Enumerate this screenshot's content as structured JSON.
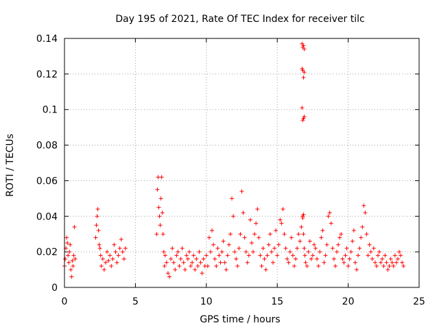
{
  "chart_data": {
    "type": "scatter",
    "title": "Day 195 of 2021, Rate Of TEC Index for receiver tilc",
    "xlabel": "GPS time / hours",
    "ylabel": "ROTI / TECUs",
    "xlim": [
      0,
      25
    ],
    "ylim": [
      0,
      0.14
    ],
    "x_ticks": [
      0,
      5,
      10,
      15,
      20,
      25
    ],
    "x_tick_labels": [
      "0",
      "5",
      "10",
      "15",
      "20",
      "25"
    ],
    "y_ticks": [
      0,
      0.02,
      0.04,
      0.06,
      0.08,
      0.1,
      0.12,
      0.14
    ],
    "y_tick_labels": [
      "0",
      "0.02",
      "0.04",
      "0.06",
      "0.08",
      "0.1",
      "0.12",
      "0.14"
    ],
    "grid": true,
    "marker": "+",
    "color": "#ff0000",
    "series": [
      {
        "name": "ROTI",
        "x": [
          0.0,
          0.05,
          0.1,
          0.15,
          0.2,
          0.25,
          0.3,
          0.35,
          0.4,
          0.45,
          0.5,
          0.55,
          0.6,
          0.65,
          0.7,
          0.75,
          2.2,
          2.25,
          2.3,
          2.35,
          2.4,
          2.45,
          2.5,
          2.55,
          2.6,
          2.7,
          2.8,
          2.9,
          3.0,
          3.1,
          3.2,
          3.3,
          3.4,
          3.5,
          3.6,
          3.7,
          3.8,
          3.9,
          4.0,
          4.1,
          4.2,
          4.3,
          6.5,
          6.55,
          6.6,
          6.65,
          6.7,
          6.75,
          6.8,
          6.85,
          6.9,
          6.95,
          7.0,
          7.05,
          7.1,
          7.2,
          7.3,
          7.4,
          7.5,
          7.6,
          7.7,
          7.8,
          7.9,
          8.0,
          8.1,
          8.2,
          8.3,
          8.4,
          8.5,
          8.6,
          8.7,
          8.8,
          8.9,
          9.0,
          9.1,
          9.2,
          9.3,
          9.4,
          9.5,
          9.6,
          9.7,
          9.8,
          9.9,
          10.0,
          10.1,
          10.2,
          10.3,
          10.4,
          10.5,
          10.6,
          10.7,
          10.8,
          10.9,
          11.0,
          11.1,
          11.2,
          11.3,
          11.4,
          11.5,
          11.6,
          11.7,
          11.8,
          11.9,
          12.0,
          12.1,
          12.2,
          12.3,
          12.4,
          12.5,
          12.6,
          12.7,
          12.8,
          12.9,
          13.0,
          13.1,
          13.2,
          13.3,
          13.4,
          13.5,
          13.6,
          13.7,
          13.8,
          13.9,
          14.0,
          14.1,
          14.2,
          14.3,
          14.4,
          14.5,
          14.6,
          14.7,
          14.8,
          14.9,
          15.0,
          15.1,
          15.2,
          15.3,
          15.4,
          15.5,
          15.6,
          15.7,
          15.8,
          15.9,
          16.0,
          16.1,
          16.2,
          16.3,
          16.4,
          16.5,
          16.6,
          16.7,
          16.8,
          16.85,
          16.9,
          16.95,
          17.0,
          17.1,
          17.2,
          17.3,
          17.4,
          17.5,
          17.6,
          17.7,
          17.8,
          17.9,
          18.0,
          18.1,
          18.2,
          18.3,
          18.4,
          18.5,
          18.6,
          18.7,
          18.8,
          18.9,
          19.0,
          19.1,
          19.2,
          19.3,
          19.4,
          19.5,
          19.6,
          19.7,
          19.8,
          19.9,
          20.0,
          20.1,
          20.2,
          20.3,
          20.4,
          20.5,
          20.6,
          20.7,
          20.8,
          20.9,
          21.0,
          21.1,
          21.2,
          21.3,
          21.4,
          21.5,
          21.6,
          21.7,
          21.8,
          21.9,
          22.0,
          22.1,
          22.2,
          22.3,
          22.4,
          22.5,
          22.6,
          22.7,
          22.8,
          22.9,
          23.0,
          23.1,
          23.2,
          23.3,
          23.4,
          23.5,
          23.6,
          23.7,
          23.8,
          23.9,
          16.75,
          16.8,
          16.85,
          16.9,
          16.75,
          16.8,
          16.85,
          16.9,
          16.75,
          16.8,
          16.85,
          16.9,
          16.8,
          16.85,
          16.8
        ],
        "y": [
          0.012,
          0.016,
          0.022,
          0.028,
          0.025,
          0.018,
          0.014,
          0.02,
          0.024,
          0.01,
          0.006,
          0.015,
          0.012,
          0.018,
          0.034,
          0.016,
          0.028,
          0.035,
          0.04,
          0.044,
          0.032,
          0.024,
          0.022,
          0.018,
          0.012,
          0.016,
          0.01,
          0.014,
          0.02,
          0.015,
          0.018,
          0.012,
          0.016,
          0.024,
          0.02,
          0.014,
          0.018,
          0.022,
          0.027,
          0.02,
          0.016,
          0.022,
          0.03,
          0.055,
          0.062,
          0.045,
          0.04,
          0.035,
          0.05,
          0.062,
          0.042,
          0.03,
          0.02,
          0.012,
          0.018,
          0.014,
          0.008,
          0.006,
          0.016,
          0.022,
          0.014,
          0.01,
          0.018,
          0.02,
          0.012,
          0.016,
          0.022,
          0.014,
          0.01,
          0.018,
          0.016,
          0.02,
          0.012,
          0.014,
          0.018,
          0.01,
          0.016,
          0.012,
          0.02,
          0.014,
          0.008,
          0.016,
          0.012,
          0.018,
          0.012,
          0.028,
          0.02,
          0.032,
          0.024,
          0.016,
          0.012,
          0.022,
          0.018,
          0.014,
          0.02,
          0.026,
          0.014,
          0.01,
          0.018,
          0.024,
          0.03,
          0.05,
          0.04,
          0.02,
          0.016,
          0.012,
          0.022,
          0.03,
          0.054,
          0.042,
          0.028,
          0.02,
          0.014,
          0.018,
          0.038,
          0.025,
          0.02,
          0.03,
          0.036,
          0.044,
          0.028,
          0.018,
          0.012,
          0.022,
          0.016,
          0.01,
          0.018,
          0.024,
          0.03,
          0.02,
          0.014,
          0.022,
          0.032,
          0.018,
          0.024,
          0.038,
          0.036,
          0.044,
          0.03,
          0.022,
          0.016,
          0.014,
          0.02,
          0.028,
          0.018,
          0.012,
          0.016,
          0.022,
          0.03,
          0.026,
          0.034,
          0.04,
          0.03,
          0.022,
          0.018,
          0.014,
          0.012,
          0.02,
          0.026,
          0.016,
          0.018,
          0.024,
          0.022,
          0.016,
          0.012,
          0.02,
          0.028,
          0.032,
          0.014,
          0.018,
          0.024,
          0.04,
          0.042,
          0.036,
          0.022,
          0.016,
          0.012,
          0.02,
          0.024,
          0.028,
          0.03,
          0.016,
          0.014,
          0.018,
          0.022,
          0.012,
          0.016,
          0.02,
          0.026,
          0.032,
          0.014,
          0.01,
          0.018,
          0.022,
          0.028,
          0.034,
          0.046,
          0.042,
          0.03,
          0.018,
          0.024,
          0.02,
          0.016,
          0.022,
          0.014,
          0.012,
          0.018,
          0.02,
          0.014,
          0.016,
          0.012,
          0.018,
          0.014,
          0.01,
          0.012,
          0.016,
          0.014,
          0.012,
          0.018,
          0.014,
          0.016,
          0.02,
          0.018,
          0.014,
          0.012,
          0.137,
          0.135,
          0.136,
          0.134,
          0.123,
          0.122,
          0.118,
          0.121,
          0.101,
          0.094,
          0.095,
          0.096,
          0.04,
          0.041,
          0.039
        ]
      }
    ]
  }
}
